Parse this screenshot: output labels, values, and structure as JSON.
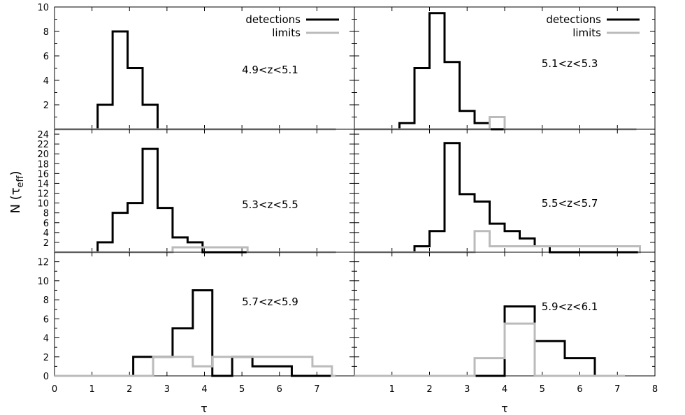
{
  "chart_data": {
    "type": "bar",
    "subtype": "step-histogram-grid",
    "xlabel": "τ",
    "ylabel": "N (τ_eff)",
    "ylabel_main": "N (τ",
    "ylabel_sub": "eff",
    "ylabel_close": ")",
    "xlim": [
      0,
      8
    ],
    "xticks_left": [
      "0",
      "1",
      "2",
      "3",
      "4",
      "5",
      "6",
      "7"
    ],
    "xticks_right": [
      "1",
      "2",
      "3",
      "4",
      "5",
      "6",
      "7",
      "8"
    ],
    "legend": {
      "placement": "top-right",
      "entries": [
        {
          "label": "detections",
          "color": "#000000"
        },
        {
          "label": "limits",
          "color": "#bbbbbb"
        }
      ]
    },
    "panels": [
      {
        "label": "4.9<z<5.1",
        "ylim": [
          0,
          10
        ],
        "yticks": [
          "2",
          "4",
          "6",
          "8",
          "10"
        ],
        "ytick_values": [
          2,
          4,
          6,
          8,
          10
        ],
        "baseline_end": 7.5,
        "detections": [
          [
            1.15,
            1.55,
            2
          ],
          [
            1.55,
            1.95,
            8
          ],
          [
            1.95,
            2.35,
            5
          ],
          [
            2.35,
            2.75,
            2
          ]
        ],
        "limits": []
      },
      {
        "label": "5.1<z<5.3",
        "ylim": [
          0,
          10
        ],
        "baseline_end": 7.5,
        "detections": [
          [
            1.2,
            1.6,
            0.5
          ],
          [
            1.6,
            2.0,
            5
          ],
          [
            2.0,
            2.4,
            9.5
          ],
          [
            2.4,
            2.8,
            5.5
          ],
          [
            2.8,
            3.2,
            1.5
          ],
          [
            3.2,
            3.6,
            0.5
          ]
        ],
        "limits": [
          [
            3.6,
            4.0,
            1
          ]
        ]
      },
      {
        "label": "5.3<z<5.5",
        "ylim": [
          0,
          25
        ],
        "yticks": [
          "2",
          "4",
          "6",
          "8",
          "10",
          "12",
          "14",
          "16",
          "18",
          "20",
          "22",
          "24"
        ],
        "ytick_values": [
          2,
          4,
          6,
          8,
          10,
          12,
          14,
          16,
          18,
          20,
          22,
          24
        ],
        "baseline_end": 7.5,
        "detections": [
          [
            1.15,
            1.55,
            2
          ],
          [
            1.55,
            1.95,
            8
          ],
          [
            1.95,
            2.35,
            10
          ],
          [
            2.35,
            2.75,
            21
          ],
          [
            2.75,
            3.15,
            9
          ],
          [
            3.15,
            3.55,
            3
          ],
          [
            3.55,
            3.95,
            2
          ]
        ],
        "limits": [
          [
            3.15,
            3.55,
            1
          ],
          [
            4.75,
            5.15,
            1
          ]
        ]
      },
      {
        "label": "5.5<z<5.7",
        "ylim": [
          0,
          25
        ],
        "baseline_end": 7.55,
        "detections": [
          [
            1.6,
            2.0,
            1.2
          ],
          [
            2.0,
            2.4,
            4.3
          ],
          [
            2.4,
            2.8,
            22.2
          ],
          [
            2.8,
            3.2,
            11.8
          ],
          [
            3.2,
            3.6,
            10.3
          ],
          [
            3.6,
            4.0,
            5.8
          ],
          [
            4.0,
            4.4,
            4.3
          ],
          [
            4.4,
            4.8,
            2.8
          ],
          [
            4.8,
            5.2,
            1.2
          ]
        ],
        "limits": [
          [
            3.2,
            3.6,
            4.3
          ],
          [
            3.6,
            4.0,
            1.2
          ],
          [
            7.2,
            7.6,
            1.2
          ]
        ]
      },
      {
        "label": "5.7<z<5.9",
        "ylim": [
          0,
          13
        ],
        "yticks": [
          "0",
          "2",
          "4",
          "6",
          "8",
          "10",
          "12"
        ],
        "ytick_values": [
          0,
          2,
          4,
          6,
          8,
          10,
          12
        ],
        "baseline_end": 7.5,
        "detections": [
          [
            2.1,
            2.63,
            2
          ],
          [
            2.63,
            3.15,
            2
          ],
          [
            3.15,
            3.69,
            5
          ],
          [
            3.69,
            4.21,
            9
          ],
          [
            4.21,
            4.74,
            0
          ],
          [
            4.74,
            5.28,
            2
          ],
          [
            5.28,
            5.8,
            1
          ],
          [
            5.8,
            6.33,
            1
          ]
        ],
        "limits": [
          [
            2.63,
            3.15,
            2
          ],
          [
            3.15,
            3.69,
            2
          ],
          [
            3.69,
            4.21,
            1
          ],
          [
            4.21,
            4.74,
            2
          ],
          [
            4.74,
            5.28,
            2
          ],
          [
            6.88,
            7.4,
            1
          ]
        ]
      },
      {
        "label": "5.9<z<6.1",
        "ylim": [
          0,
          13
        ],
        "baseline_end": 7.2,
        "detections": [
          [
            4.0,
            4.8,
            7.3
          ],
          [
            4.8,
            5.6,
            3.65
          ],
          [
            5.6,
            6.4,
            1.86
          ]
        ],
        "limits": [
          [
            3.2,
            4.0,
            1.86
          ],
          [
            4.0,
            4.8,
            5.5
          ]
        ]
      }
    ]
  }
}
